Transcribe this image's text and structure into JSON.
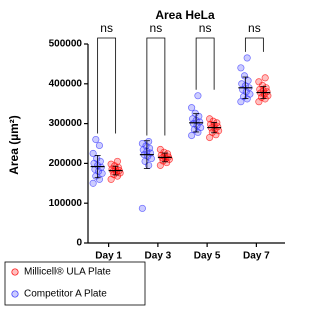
{
  "chart_data": {
    "type": "dot",
    "title": "Area HeLa",
    "y_label": "Area (µm²)",
    "categories": [
      "Day 1",
      "Day 3",
      "Day 5",
      "Day 7"
    ],
    "ylim": [
      0,
      500000
    ],
    "yticks": [
      0,
      100000,
      200000,
      300000,
      400000,
      500000
    ],
    "series": [
      {
        "name": "Millicell® ULA Plate",
        "color": "#ff0000",
        "values": [
          [
            160000,
            168000,
            172000,
            176000,
            178000,
            180000,
            182000,
            184000,
            186000,
            190000,
            194000,
            198000,
            205000
          ],
          [
            195000,
            202000,
            206000,
            210000,
            212000,
            214000,
            216000,
            218000,
            220000,
            224000,
            228000,
            235000
          ],
          [
            265000,
            272000,
            278000,
            282000,
            286000,
            289000,
            292000,
            295000,
            298000,
            302000,
            306000,
            312000
          ],
          [
            355000,
            362000,
            366000,
            370000,
            374000,
            377000,
            380000,
            383000,
            386000,
            390000,
            396000,
            405000,
            415000
          ]
        ],
        "mean": [
          182000,
          215000,
          290000,
          378000
        ],
        "sd": [
          11000,
          11000,
          13000,
          15000
        ]
      },
      {
        "name": "Competitor A Plate",
        "color": "#3333ff",
        "values": [
          [
            150000,
            160000,
            168000,
            175000,
            180000,
            185000,
            190000,
            195000,
            200000,
            205000,
            212000,
            225000,
            245000,
            260000
          ],
          [
            87000,
            195000,
            205000,
            212000,
            218000,
            222000,
            226000,
            230000,
            234000,
            238000,
            244000,
            250000,
            255000
          ],
          [
            270000,
            278000,
            285000,
            290000,
            295000,
            300000,
            304000,
            308000,
            312000,
            318000,
            326000,
            340000,
            370000
          ],
          [
            355000,
            362000,
            368000,
            374000,
            380000,
            385000,
            390000,
            395000,
            400000,
            408000,
            420000,
            440000,
            465000
          ]
        ],
        "mean": [
          192000,
          222000,
          302000,
          390000
        ],
        "sd": [
          28000,
          35000,
          23000,
          27000
        ]
      }
    ],
    "comparisons": [
      "ns",
      "ns",
      "ns",
      "ns"
    ]
  }
}
